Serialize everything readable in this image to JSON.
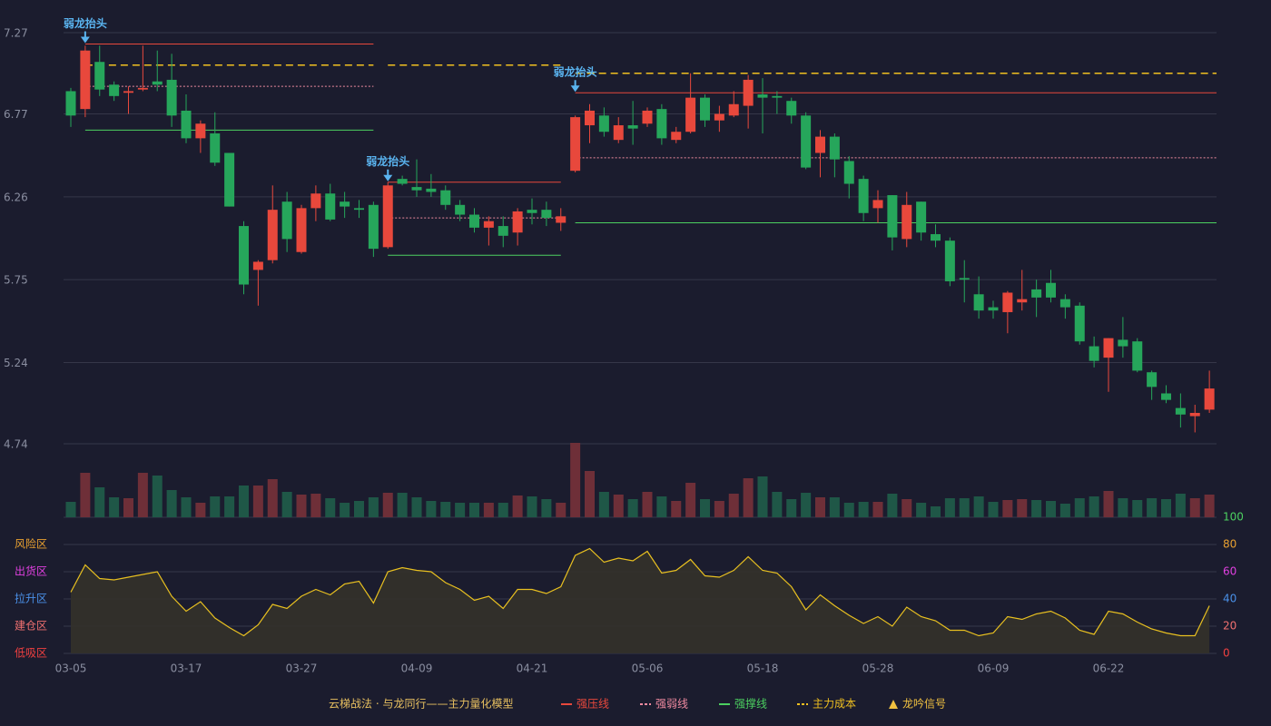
{
  "chart_data": {
    "type": "candlestick",
    "categories": [
      "03-05",
      null,
      null,
      null,
      null,
      null,
      null,
      null,
      "03-17",
      null,
      null,
      null,
      null,
      null,
      null,
      null,
      "03-27",
      null,
      null,
      null,
      null,
      null,
      null,
      null,
      "04-09",
      null,
      null,
      null,
      null,
      null,
      null,
      null,
      "04-21",
      null,
      null,
      null,
      null,
      null,
      null,
      null,
      "05-06",
      null,
      null,
      null,
      null,
      null,
      null,
      null,
      "05-18",
      null,
      null,
      null,
      null,
      null,
      null,
      null,
      "05-28",
      null,
      null,
      null,
      null,
      null,
      null,
      null,
      "06-09",
      null,
      null,
      null,
      null,
      null,
      null,
      null,
      "06-22",
      null,
      null,
      null,
      null,
      null,
      null,
      null
    ],
    "open": [
      6.91,
      6.8,
      7.09,
      6.95,
      6.9,
      6.92,
      6.97,
      6.98,
      6.79,
      6.62,
      6.65,
      6.53,
      6.08,
      5.81,
      5.87,
      6.23,
      5.92,
      6.19,
      6.28,
      6.23,
      6.19,
      6.21,
      5.95,
      6.37,
      6.32,
      6.31,
      6.3,
      6.21,
      6.15,
      6.07,
      6.08,
      6.04,
      6.18,
      6.18,
      6.1,
      6.42,
      6.7,
      6.76,
      6.61,
      6.7,
      6.71,
      6.8,
      6.61,
      6.66,
      6.87,
      6.73,
      6.76,
      6.82,
      6.89,
      6.88,
      6.85,
      6.76,
      6.53,
      6.63,
      6.48,
      6.37,
      6.19,
      6.27,
      6.0,
      6.23,
      6.03,
      5.99,
      5.76,
      5.66,
      5.58,
      5.55,
      5.61,
      5.69,
      5.73,
      5.63,
      5.59,
      5.34,
      5.27,
      5.38,
      5.37,
      5.18,
      5.05,
      4.96,
      4.91,
      4.95
    ],
    "high": [
      6.93,
      7.19,
      7.19,
      6.97,
      6.94,
      7.19,
      7.16,
      7.14,
      6.89,
      6.73,
      6.78,
      6.53,
      6.11,
      5.87,
      6.33,
      6.29,
      6.21,
      6.33,
      6.34,
      6.29,
      6.24,
      6.23,
      6.35,
      6.39,
      6.49,
      6.4,
      6.33,
      6.24,
      6.19,
      6.14,
      6.14,
      6.19,
      6.25,
      6.23,
      6.19,
      6.76,
      6.83,
      6.81,
      6.75,
      6.85,
      6.81,
      6.83,
      6.69,
      7.02,
      6.89,
      6.82,
      6.91,
      7.01,
      6.99,
      6.91,
      6.87,
      6.78,
      6.67,
      6.65,
      6.51,
      6.39,
      6.3,
      6.27,
      6.29,
      6.23,
      6.09,
      6.01,
      5.87,
      5.77,
      5.62,
      5.68,
      5.81,
      5.75,
      5.81,
      5.66,
      5.61,
      5.4,
      5.39,
      5.52,
      5.39,
      5.19,
      5.1,
      5.05,
      4.98,
      5.19
    ],
    "low": [
      6.69,
      6.75,
      6.88,
      6.85,
      6.77,
      6.91,
      6.91,
      6.69,
      6.59,
      6.53,
      6.45,
      6.2,
      5.66,
      5.59,
      5.85,
      5.92,
      5.91,
      6.11,
      6.11,
      6.13,
      6.13,
      5.89,
      5.94,
      6.33,
      6.26,
      6.26,
      6.18,
      6.11,
      6.04,
      5.96,
      5.95,
      5.96,
      6.09,
      6.08,
      6.05,
      6.41,
      6.59,
      6.63,
      6.59,
      6.58,
      6.69,
      6.58,
      6.59,
      6.65,
      6.69,
      6.66,
      6.75,
      6.68,
      6.65,
      6.77,
      6.71,
      6.43,
      6.38,
      6.38,
      6.25,
      6.11,
      6.1,
      5.93,
      5.95,
      5.99,
      5.95,
      5.71,
      5.61,
      5.51,
      5.51,
      5.42,
      5.56,
      5.52,
      5.61,
      5.51,
      5.35,
      5.21,
      5.06,
      5.27,
      5.18,
      5.01,
      4.99,
      4.84,
      4.81,
      4.93
    ],
    "close": [
      6.76,
      7.16,
      6.92,
      6.88,
      6.91,
      6.93,
      6.95,
      6.76,
      6.62,
      6.71,
      6.47,
      6.2,
      5.72,
      5.86,
      6.18,
      6.0,
      6.19,
      6.28,
      6.12,
      6.2,
      6.18,
      5.94,
      6.33,
      6.34,
      6.3,
      6.29,
      6.21,
      6.15,
      6.07,
      6.11,
      6.02,
      6.17,
      6.16,
      6.13,
      6.14,
      6.75,
      6.79,
      6.66,
      6.7,
      6.68,
      6.79,
      6.62,
      6.66,
      6.87,
      6.73,
      6.77,
      6.83,
      6.98,
      6.87,
      6.87,
      6.76,
      6.44,
      6.63,
      6.49,
      6.34,
      6.16,
      6.24,
      6.01,
      6.21,
      6.04,
      5.99,
      5.74,
      5.75,
      5.56,
      5.56,
      5.67,
      5.63,
      5.64,
      5.64,
      5.58,
      5.37,
      5.25,
      5.39,
      5.34,
      5.19,
      5.09,
      5.01,
      4.92,
      4.93,
      5.08
    ],
    "volume": [
      17,
      49,
      33,
      22,
      21,
      49,
      46,
      30,
      22,
      16,
      23,
      23,
      35,
      35,
      42,
      28,
      25,
      26,
      21,
      16,
      18,
      22,
      27,
      27,
      22,
      18,
      17,
      16,
      16,
      16,
      16,
      24,
      23,
      20,
      16,
      82,
      51,
      28,
      25,
      20,
      28,
      23,
      18,
      38,
      20,
      18,
      26,
      43,
      45,
      28,
      20,
      27,
      22,
      22,
      16,
      17,
      17,
      26,
      20,
      16,
      12,
      21,
      21,
      23,
      17,
      19,
      20,
      19,
      18,
      15,
      21,
      23,
      29,
      21,
      19,
      21,
      20,
      26,
      21,
      25
    ],
    "up_color": "#e8483c",
    "down_color": "#26a65b",
    "volume_up_color": "#6e2f38",
    "volume_down_color": "#1f5747",
    "ylim": [
      4.74,
      7.27
    ],
    "yticks": [
      7.27,
      6.77,
      6.26,
      5.75,
      5.24,
      4.74
    ],
    "grid": true,
    "levels": [
      {
        "name": "强压线",
        "color": "#e8483c",
        "style": "solid",
        "segments": [
          {
            "start": 1,
            "end": 21,
            "value": 7.2
          },
          {
            "start": 22,
            "end": 34,
            "value": 6.35
          },
          {
            "start": 35,
            "end": 79,
            "value": 6.9
          }
        ]
      },
      {
        "name": "强弱线",
        "color": "#f08aa0",
        "style": "dotted",
        "segments": [
          {
            "start": 1,
            "end": 21,
            "value": 6.94
          },
          {
            "start": 22,
            "end": 34,
            "value": 6.13
          },
          {
            "start": 35,
            "end": 79,
            "value": 6.5
          }
        ]
      },
      {
        "name": "强撑线",
        "color": "#4cd060",
        "style": "solid",
        "segments": [
          {
            "start": 1,
            "end": 21,
            "value": 6.67
          },
          {
            "start": 22,
            "end": 34,
            "value": 5.9
          },
          {
            "start": 35,
            "end": 79,
            "value": 6.1
          }
        ]
      },
      {
        "name": "主力成本",
        "color": "#f0c020",
        "style": "dashed",
        "segments": [
          {
            "start": 1,
            "end": 21,
            "value": 7.07
          },
          {
            "start": 22,
            "end": 34,
            "value": 7.07
          },
          {
            "start": 35,
            "end": 79,
            "value": 7.02
          }
        ]
      }
    ],
    "signal": {
      "name": "龙吟信号",
      "color": "#f0c040"
    },
    "annotations": [
      {
        "index": 1,
        "text": "弱龙抬头"
      },
      {
        "index": 22,
        "text": "弱龙抬头"
      },
      {
        "index": 35,
        "text": "弱龙抬头"
      }
    ],
    "annotation_color": "#5ab4f0",
    "indicator": {
      "values": [
        45,
        65,
        55,
        54,
        56,
        58,
        60,
        42,
        31,
        38,
        26,
        19,
        13,
        21,
        36,
        33,
        42,
        47,
        43,
        51,
        53,
        37,
        60,
        63,
        61,
        60,
        52,
        47,
        39,
        42,
        33,
        47,
        47,
        44,
        49,
        72,
        77,
        67,
        70,
        68,
        75,
        59,
        61,
        69,
        57,
        56,
        61,
        71,
        61,
        59,
        49,
        32,
        43,
        35,
        28,
        22,
        27,
        20,
        34,
        27,
        24,
        17,
        17,
        13,
        15,
        27,
        25,
        29,
        31,
        26,
        17,
        14,
        31,
        29,
        23,
        18,
        15,
        13,
        13,
        35
      ],
      "color": "#e8c020",
      "fill": "#34322a",
      "ylim": [
        0,
        100
      ],
      "yticks": [
        100,
        80,
        60,
        40,
        20,
        0
      ],
      "ytick_colors": [
        "#4cd060",
        "#e8a030",
        "#e040e0",
        "#4a90e8",
        "#f07070",
        "#f04040"
      ],
      "zones": [
        {
          "value": 80,
          "label": "风险区",
          "color": "#e8a030"
        },
        {
          "value": 60,
          "label": "出货区",
          "color": "#e040e0"
        },
        {
          "value": 40,
          "label": "拉升区",
          "color": "#4a90e8"
        },
        {
          "value": 20,
          "label": "建仓区",
          "color": "#f07070"
        },
        {
          "value": 0,
          "label": "低吸区",
          "color": "#f04040"
        }
      ]
    },
    "legend_title": "云梯战法 · 与龙同行——主力量化模型"
  }
}
